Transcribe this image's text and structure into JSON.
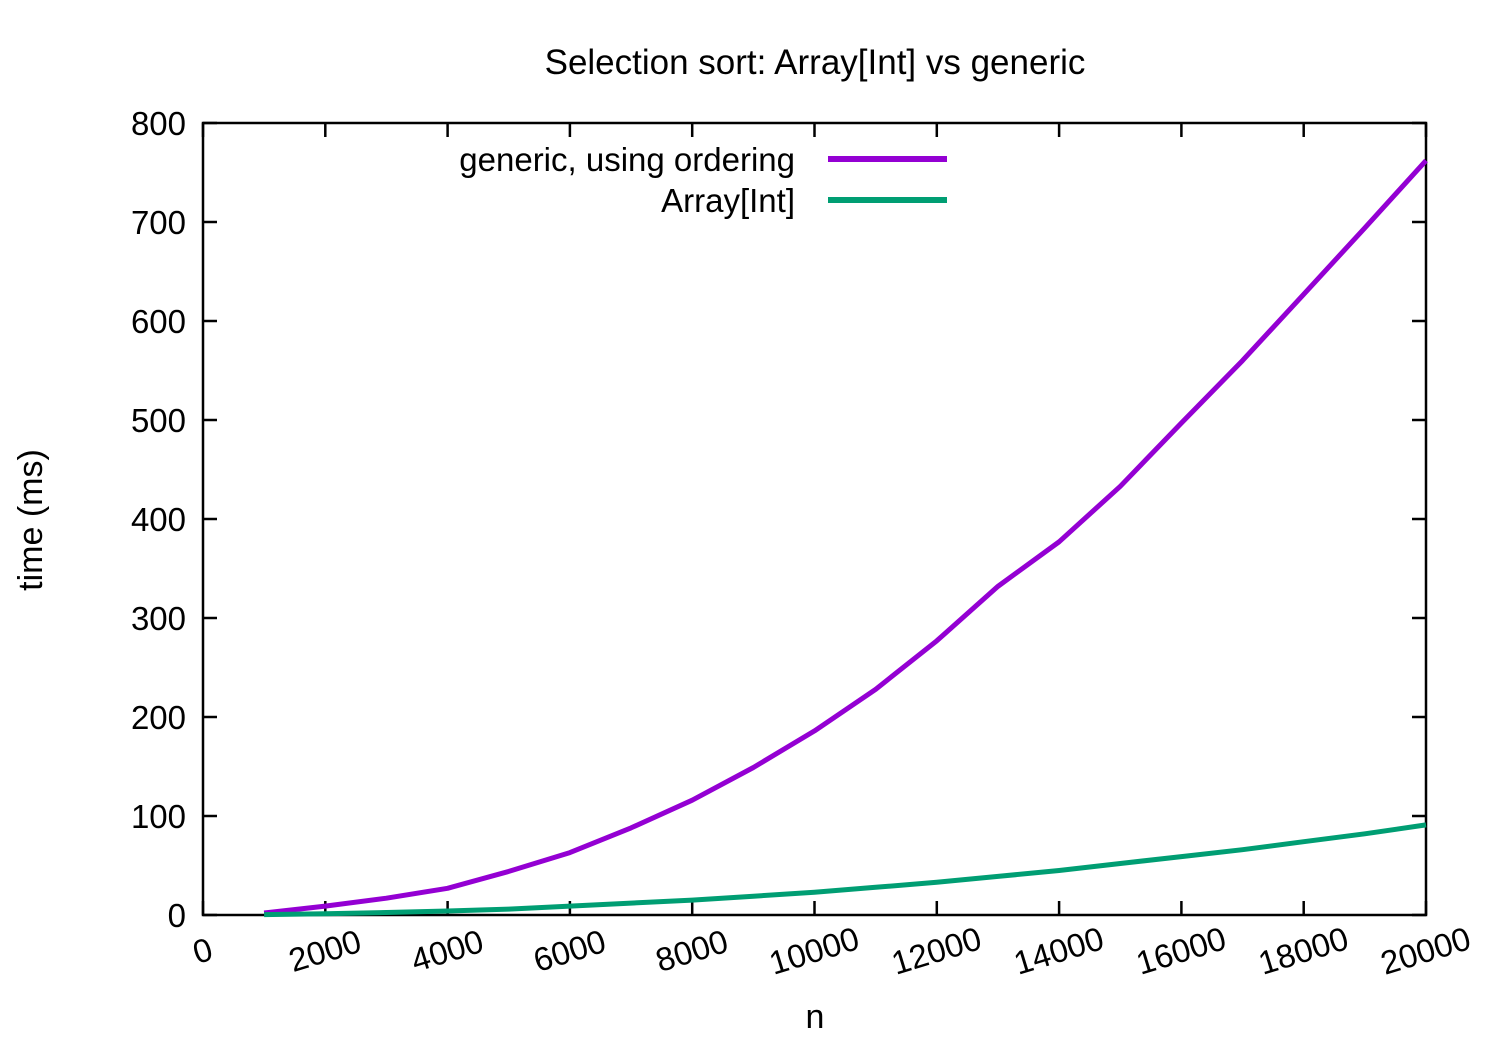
{
  "chart_data": {
    "type": "line",
    "title": "Selection sort: Array[Int] vs generic",
    "xlabel": "n",
    "ylabel": "time (ms)",
    "xlim": [
      0,
      20000
    ],
    "ylim": [
      0,
      800
    ],
    "x_ticks": [
      0,
      2000,
      4000,
      6000,
      8000,
      10000,
      12000,
      14000,
      16000,
      18000,
      20000
    ],
    "y_ticks": [
      0,
      100,
      200,
      300,
      400,
      500,
      600,
      700,
      800
    ],
    "grid": false,
    "legend_position": "top-center-inside",
    "x": [
      1000,
      2000,
      3000,
      4000,
      5000,
      6000,
      7000,
      8000,
      9000,
      10000,
      11000,
      12000,
      13000,
      14000,
      15000,
      16000,
      17000,
      18000,
      19000,
      20000
    ],
    "series": [
      {
        "name": "generic, using ordering",
        "color": "#9400d3",
        "values": [
          2,
          9,
          17,
          27,
          44,
          63,
          88,
          116,
          149,
          186,
          228,
          277,
          332,
          377,
          433,
          497,
          560,
          627,
          694,
          762
        ]
      },
      {
        "name": "Array[Int]",
        "color": "#009e73",
        "values": [
          0.4,
          1.2,
          2.5,
          4,
          6,
          9,
          12,
          15,
          19,
          23,
          28,
          33,
          39,
          45,
          52,
          59,
          66,
          74,
          82,
          91
        ]
      }
    ]
  }
}
